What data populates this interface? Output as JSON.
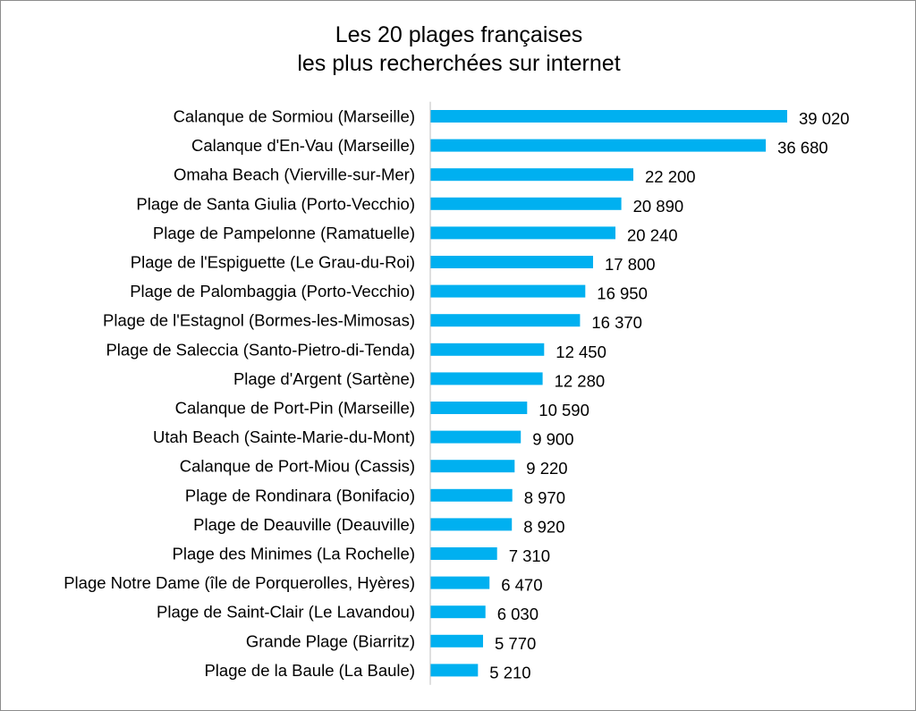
{
  "chart_data": {
    "type": "bar",
    "orientation": "horizontal",
    "title": "Les 20 plages françaises",
    "subtitle": "les plus recherchées sur internet",
    "xlabel": "",
    "ylabel": "",
    "xlim": [
      0,
      39020
    ],
    "grid": false,
    "legend": "none",
    "bar_color": "#00b0f0",
    "categories": [
      "Calanque de Sormiou (Marseille)",
      "Calanque d'En-Vau (Marseille)",
      "Omaha Beach (Vierville-sur-Mer)",
      "Plage de Santa Giulia (Porto-Vecchio)",
      "Plage de Pampelonne (Ramatuelle)",
      "Plage de l'Espiguette (Le Grau-du-Roi)",
      "Plage de Palombaggia (Porto-Vecchio)",
      "Plage de l'Estagnol (Bormes-les-Mimosas)",
      "Plage de Saleccia (Santo-Pietro-di-Tenda)",
      "Plage d'Argent (Sartène)",
      "Calanque de Port-Pin (Marseille)",
      "Utah Beach (Sainte-Marie-du-Mont)",
      "Calanque de Port-Miou (Cassis)",
      "Plage de Rondinara (Bonifacio)",
      "Plage de Deauville (Deauville)",
      "Plage des Minimes (La Rochelle)",
      "Plage Notre Dame (île de Porquerolles, Hyères)",
      "Plage de Saint-Clair (Le Lavandou)",
      "Grande Plage (Biarritz)",
      "Plage de la Baule (La Baule)"
    ],
    "values": [
      39020,
      36680,
      22200,
      20890,
      20240,
      17800,
      16950,
      16370,
      12450,
      12280,
      10590,
      9900,
      9220,
      8970,
      8920,
      7310,
      6470,
      6030,
      5770,
      5210
    ],
    "value_labels": [
      "39 020",
      "36 680",
      "22 200",
      "20 890",
      "20 240",
      "17 800",
      "16 950",
      "16 370",
      "12 450",
      "12 280",
      "10 590",
      "9 900",
      "9 220",
      "8 970",
      "8 920",
      "7 310",
      "6 470",
      "6 030",
      "5 770",
      "5 210"
    ]
  }
}
